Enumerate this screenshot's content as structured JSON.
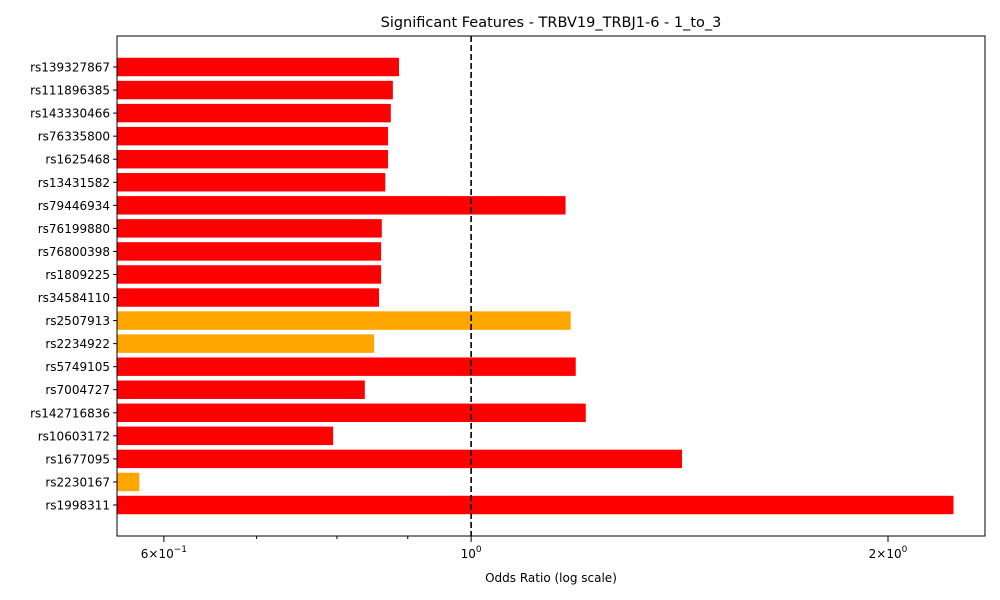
{
  "chart_data": {
    "type": "bar",
    "orientation": "horizontal",
    "title": "Significant Features - TRBV19_TRBJ1-6 - 1_to_3",
    "xlabel": "Odds Ratio (log scale)",
    "ylabel": "",
    "x_scale": "log",
    "xlim": [
      0.555,
      2.35
    ],
    "reference_line": {
      "x": 1.0,
      "style": "dashed",
      "color": "#000000"
    },
    "x_ticks": [
      {
        "value": 0.6,
        "base": "6",
        "exp": "−1"
      },
      {
        "value": 1.0,
        "base": "10",
        "exp": "0"
      },
      {
        "value": 2.0,
        "base": "2",
        "exp": "0"
      }
    ],
    "x_minor_ticks": [
      0.7,
      0.8,
      0.9
    ],
    "categories": [
      "rs139327867",
      "rs111896385",
      "rs143330466",
      "rs76335800",
      "rs1625468",
      "rs13431582",
      "rs79446934",
      "rs76199880",
      "rs76800398",
      "rs1809225",
      "rs34584110",
      "rs2507913",
      "rs2234922",
      "rs5749105",
      "rs7004727",
      "rs142716836",
      "rs10603172",
      "rs1677095",
      "rs2230167",
      "rs1998311"
    ],
    "values": [
      0.887,
      0.878,
      0.875,
      0.871,
      0.871,
      0.867,
      1.17,
      0.862,
      0.861,
      0.861,
      0.858,
      1.18,
      0.851,
      1.19,
      0.838,
      1.21,
      0.795,
      1.42,
      0.576,
      2.23
    ],
    "colors": [
      "#ff0000",
      "#ff0000",
      "#ff0000",
      "#ff0000",
      "#ff0000",
      "#ff0000",
      "#ff0000",
      "#ff0000",
      "#ff0000",
      "#ff0000",
      "#ff0000",
      "#ffa500",
      "#ffa500",
      "#ff0000",
      "#ff0000",
      "#ff0000",
      "#ff0000",
      "#ff0000",
      "#ffa500",
      "#ff0000"
    ]
  }
}
